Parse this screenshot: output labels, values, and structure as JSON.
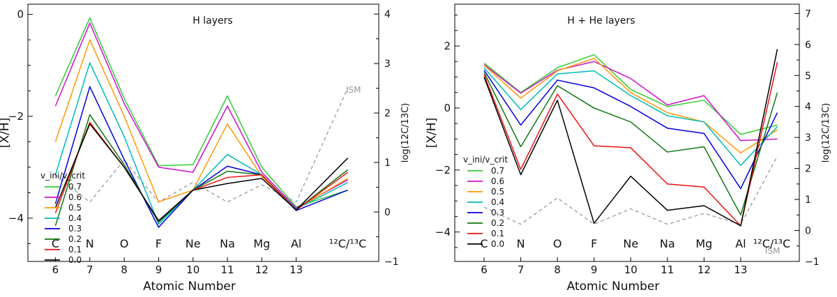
{
  "figure": {
    "shared_xlabel": "Atomic Number",
    "legend_header": "v_ini/v_crit"
  },
  "chart_data": [
    {
      "type": "line",
      "title": "H layers",
      "xlabel": "Atomic Number",
      "ylabel": "[X/H]",
      "ylabel_right": "log(12C/13C)",
      "xlim": [
        5.2,
        15.4
      ],
      "ylim": [
        -4.85,
        0.2
      ],
      "ylim_right": [
        -1.0,
        4.2
      ],
      "x_ticks": [
        6,
        7,
        8,
        9,
        10,
        11,
        12,
        13
      ],
      "y_ticks": [
        0,
        -2,
        -4
      ],
      "y_ticks_right": [
        4,
        3,
        2,
        1,
        0,
        -1
      ],
      "element_labels": [
        {
          "x": 6,
          "label": "C"
        },
        {
          "x": 7,
          "label": "N"
        },
        {
          "x": 8,
          "label": "O"
        },
        {
          "x": 9,
          "label": "F"
        },
        {
          "x": 10,
          "label": "Ne"
        },
        {
          "x": 11,
          "label": "Na"
        },
        {
          "x": 12,
          "label": "Mg"
        },
        {
          "x": 13,
          "label": "Al"
        },
        {
          "x": 14.5,
          "label": "¹²C/¹³C"
        }
      ],
      "x": [
        6,
        7,
        8,
        9,
        10,
        11,
        12,
        13,
        14.5
      ],
      "series": [
        {
          "name": "0.7",
          "color": "#33cc33",
          "values": [
            -1.6,
            -0.07,
            -1.65,
            -2.97,
            -2.95,
            -1.6,
            -3.0,
            -3.78,
            -3.45
          ]
        },
        {
          "name": "0.6",
          "color": "#cc11cc",
          "values": [
            -1.8,
            -0.17,
            -1.75,
            -3.0,
            -3.1,
            -1.8,
            -3.1,
            -3.8,
            -3.25
          ]
        },
        {
          "name": "0.5",
          "color": "#ff9900",
          "values": [
            -2.5,
            -0.5,
            -2.0,
            -3.68,
            -3.45,
            -2.15,
            -3.18,
            -3.82,
            -3.22
          ]
        },
        {
          "name": "0.4",
          "color": "#00bbbb",
          "values": [
            -3.15,
            -0.95,
            -2.4,
            -4.12,
            -3.45,
            -2.75,
            -3.15,
            -3.82,
            -3.3
          ]
        },
        {
          "name": "0.3",
          "color": "#0000dd",
          "values": [
            -3.72,
            -1.42,
            -2.85,
            -4.18,
            -3.45,
            -2.98,
            -3.15,
            -3.85,
            -3.45
          ]
        },
        {
          "name": "0.2",
          "color": "#117711",
          "values": [
            -4.15,
            -1.97,
            -2.95,
            -4.08,
            -3.45,
            -3.08,
            -3.15,
            -3.84,
            -3.05
          ]
        },
        {
          "name": "0.1",
          "color": "#ee1111",
          "values": [
            -3.9,
            -2.12,
            -3.0,
            -4.05,
            -3.45,
            -3.2,
            -3.15,
            -3.84,
            -3.1
          ]
        },
        {
          "name": "0.0",
          "color": "#000000",
          "values": [
            -3.8,
            -2.15,
            -3.0,
            -4.05,
            -3.45,
            -3.32,
            -3.22,
            -3.84,
            -2.82
          ]
        }
      ],
      "ism_line": {
        "label": "ISM",
        "color": "#999999",
        "x": [
          6,
          7,
          8,
          9,
          10,
          11,
          12,
          13,
          14.5
        ],
        "values": [
          0.75,
          0.2,
          1.05,
          0.2,
          0.6,
          0.2,
          0.55,
          0.2,
          2.5
        ]
      }
    },
    {
      "type": "line",
      "title": "H + He layers",
      "xlabel": "Atomic Number",
      "ylabel": "[X/H]",
      "ylabel_right": "log(12C/13C)",
      "xlim": [
        5.2,
        14.6
      ],
      "ylim": [
        -4.95,
        3.35
      ],
      "ylim_right": [
        -1.0,
        7.3
      ],
      "x_ticks": [
        6,
        7,
        8,
        9,
        10,
        11,
        12,
        13
      ],
      "y_ticks": [
        2,
        0,
        -2,
        -4
      ],
      "y_ticks_right": [
        7,
        6,
        5,
        4,
        3,
        2,
        1,
        0,
        -1
      ],
      "element_labels": [
        {
          "x": 6,
          "label": "C"
        },
        {
          "x": 7,
          "label": "N"
        },
        {
          "x": 8,
          "label": "O"
        },
        {
          "x": 9,
          "label": "F"
        },
        {
          "x": 10,
          "label": "Ne"
        },
        {
          "x": 11,
          "label": "Na"
        },
        {
          "x": 12,
          "label": "Mg"
        },
        {
          "x": 13,
          "label": "Al"
        },
        {
          "x": 13.85,
          "label": "¹²C/¹³C"
        }
      ],
      "x": [
        6,
        7,
        8,
        9,
        10,
        11,
        12,
        13,
        14
      ],
      "series": [
        {
          "name": "0.7",
          "color": "#33cc33",
          "values": [
            1.45,
            0.5,
            1.3,
            1.72,
            0.6,
            0.05,
            0.25,
            -0.85,
            -0.55
          ]
        },
        {
          "name": "0.6",
          "color": "#cc11cc",
          "values": [
            1.4,
            0.48,
            1.22,
            1.5,
            0.95,
            0.1,
            0.4,
            -1.05,
            -1.0
          ]
        },
        {
          "name": "0.5",
          "color": "#ff9900",
          "values": [
            1.38,
            0.32,
            1.2,
            1.6,
            0.5,
            -0.15,
            -0.45,
            -1.45,
            -0.7
          ]
        },
        {
          "name": "0.4",
          "color": "#00bbbb",
          "values": [
            1.3,
            -0.05,
            1.1,
            1.2,
            0.4,
            -0.25,
            -0.45,
            -1.85,
            -0.6
          ]
        },
        {
          "name": "0.3",
          "color": "#0000dd",
          "values": [
            1.22,
            -0.55,
            0.9,
            0.65,
            0.05,
            -0.65,
            -0.82,
            -2.6,
            -0.15
          ]
        },
        {
          "name": "0.2",
          "color": "#117711",
          "values": [
            1.15,
            -1.25,
            0.72,
            0.0,
            -0.45,
            -1.42,
            -1.25,
            -3.45,
            0.5
          ]
        },
        {
          "name": "0.1",
          "color": "#ee1111",
          "values": [
            1.08,
            -1.98,
            0.45,
            -1.22,
            -1.28,
            -2.45,
            -2.55,
            -3.8,
            1.48
          ]
        },
        {
          "name": "0.0",
          "color": "#000000",
          "values": [
            1.0,
            -2.15,
            0.25,
            -3.72,
            -2.2,
            -3.3,
            -3.15,
            -3.8,
            1.9
          ]
        }
      ],
      "ism_line": {
        "label": "ISM",
        "color": "#999999",
        "x": [
          6,
          7,
          8,
          9,
          10,
          11,
          12,
          13,
          14
        ],
        "values": [
          0.75,
          0.2,
          1.05,
          0.2,
          0.7,
          0.2,
          0.55,
          0.2,
          2.4
        ]
      }
    }
  ]
}
